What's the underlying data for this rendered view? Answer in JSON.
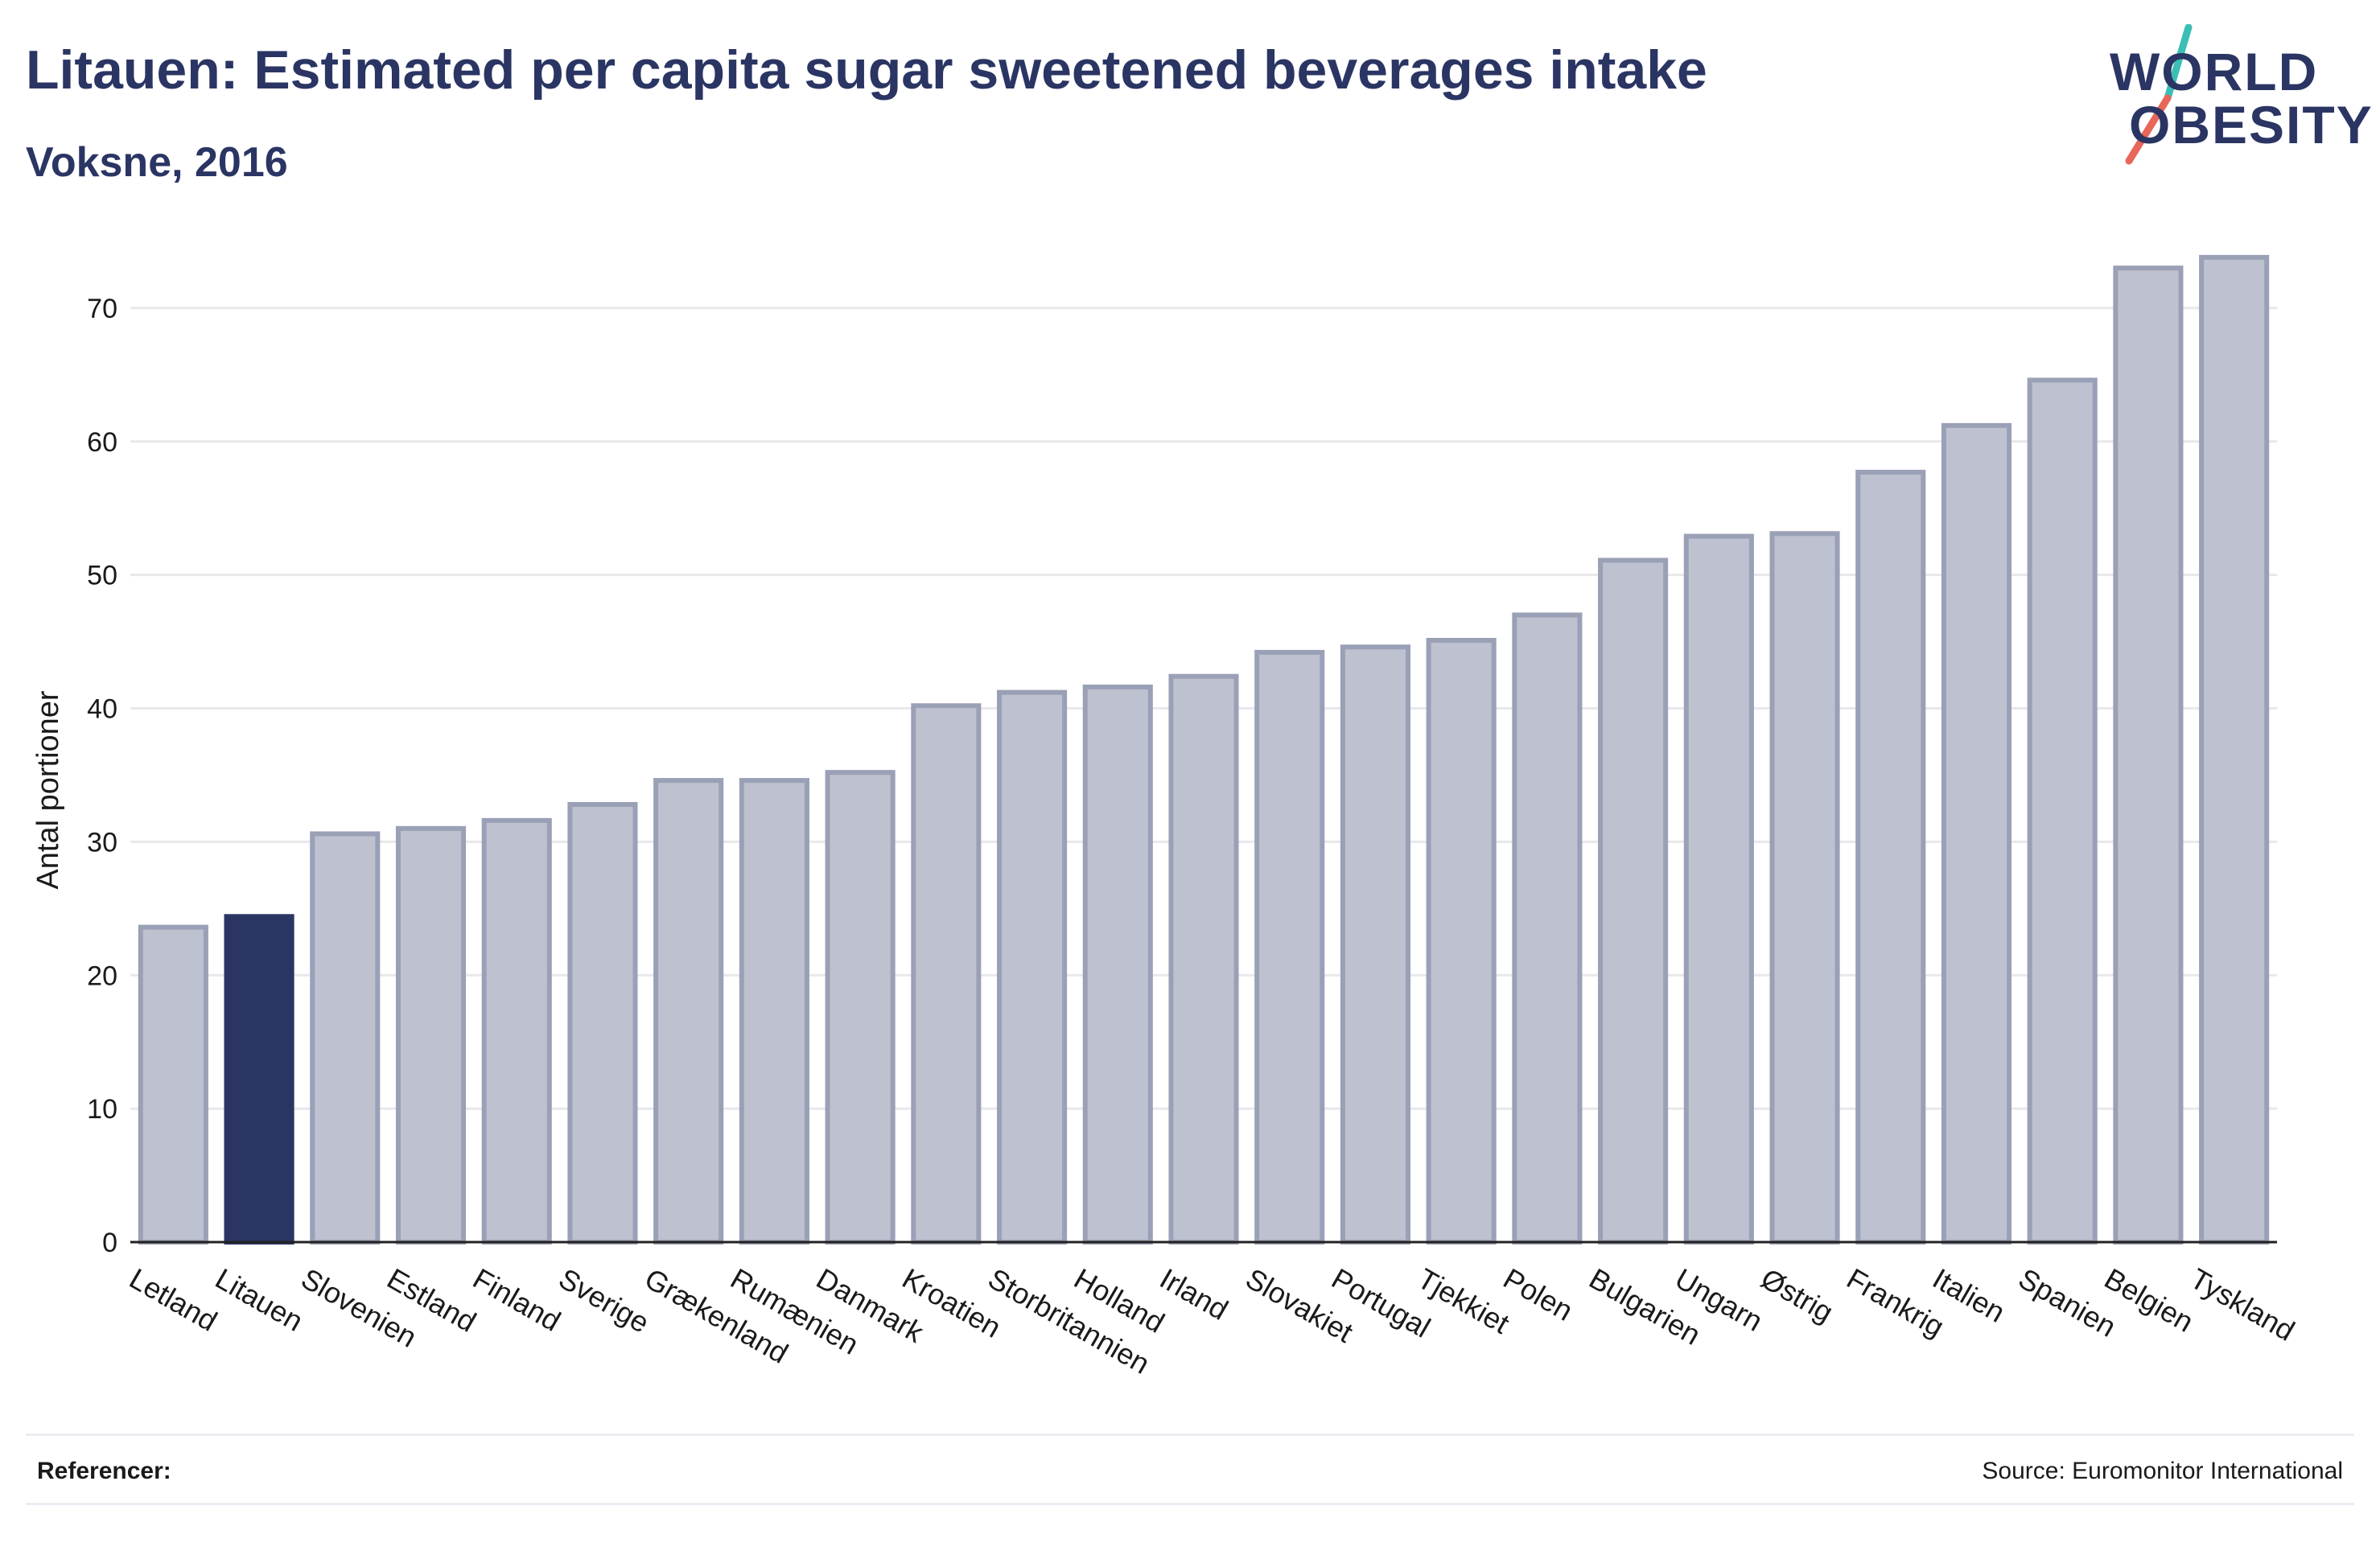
{
  "header": {
    "title": "Litauen: Estimated per capita sugar sweetened beverages intake",
    "subtitle": "Voksne, 2016"
  },
  "logo": {
    "line1": "WORLD",
    "line2": "OBESITY",
    "colors": {
      "text": "#2b3563",
      "slash_top": "#3bbfb4",
      "slash_bottom": "#e8665a"
    }
  },
  "chart_data": {
    "type": "bar",
    "ylabel": "Antal portioner",
    "ylim": [
      0,
      75
    ],
    "yticks": [
      0,
      10,
      20,
      30,
      40,
      50,
      60,
      70
    ],
    "grid": true,
    "highlight": "Litauen",
    "colors": {
      "bar": "#bec1cf",
      "bar_border": "#9aa0b6",
      "highlight": "#2b3563"
    },
    "categories": [
      "Letland",
      "Litauen",
      "Slovenien",
      "Estland",
      "Finland",
      "Sverige",
      "Grækenland",
      "Rumænien",
      "Danmark",
      "Kroatien",
      "Storbritannien",
      "Holland",
      "Irland",
      "Slovakiet",
      "Portugal",
      "Tjekkiet",
      "Polen",
      "Bulgarien",
      "Ungarn",
      "Østrig",
      "Frankrig",
      "Italien",
      "Spanien",
      "Belgien",
      "Tyskland"
    ],
    "values": [
      23.6,
      24.4,
      30.6,
      31.0,
      31.6,
      32.8,
      34.6,
      34.6,
      35.2,
      40.2,
      41.2,
      41.6,
      42.4,
      44.2,
      44.6,
      45.1,
      47.0,
      51.1,
      52.9,
      53.1,
      57.7,
      61.2,
      64.6,
      73.0,
      73.8
    ]
  },
  "footer": {
    "refs_label": "Referencer:",
    "source": "Source: Euromonitor International"
  }
}
